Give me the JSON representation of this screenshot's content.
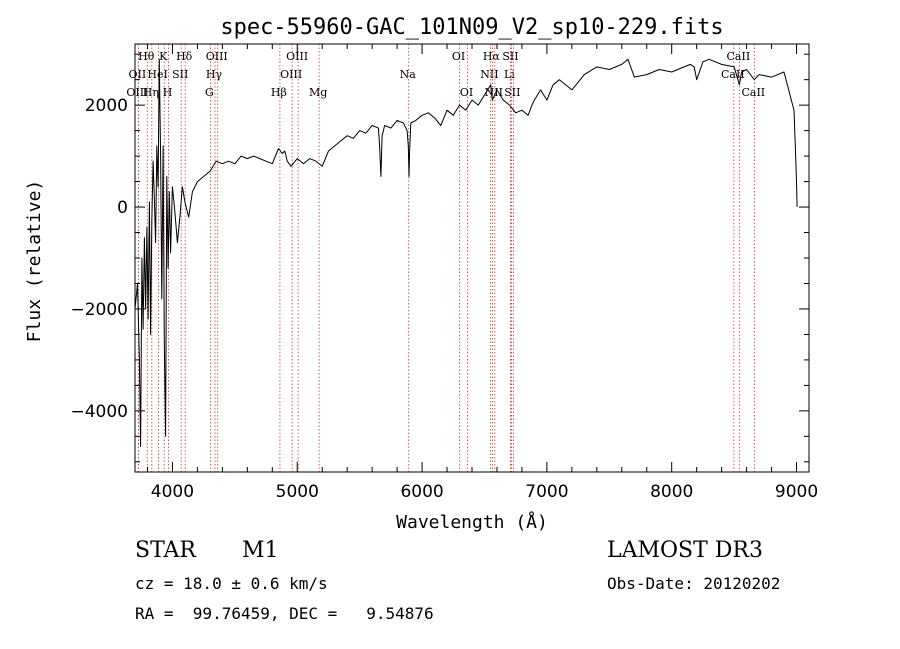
{
  "chart_data": {
    "type": "line",
    "title": "spec-55960-GAC_101N09_V2_sp10-229.fits",
    "xlabel": "Wavelength (Å)",
    "ylabel": "Flux (relative)",
    "xlim": [
      3700,
      9100
    ],
    "ylim": [
      -5200,
      3200
    ],
    "xticks": [
      4000,
      5000,
      6000,
      7000,
      8000,
      9000
    ],
    "yticks": [
      -4000,
      -2000,
      0,
      2000
    ],
    "grid": false,
    "series": [
      {
        "x": [
          3700,
          3720,
          3735,
          3745,
          3755,
          3765,
          3775,
          3785,
          3795,
          3805,
          3815,
          3825,
          3835,
          3845,
          3855,
          3865,
          3875,
          3885,
          3895,
          3905,
          3915,
          3925,
          3935,
          3945,
          3955,
          3965,
          3975,
          3985,
          4000,
          4020,
          4040,
          4060,
          4080,
          4100,
          4130,
          4160,
          4200,
          4250,
          4300,
          4350,
          4400,
          4450,
          4500,
          4550,
          4600,
          4650,
          4700,
          4750,
          4800,
          4850,
          4880,
          4900,
          4920,
          4950,
          5000,
          5050,
          5100,
          5150,
          5200,
          5250,
          5300,
          5350,
          5400,
          5450,
          5500,
          5550,
          5600,
          5650,
          5660,
          5670,
          5680,
          5690,
          5700,
          5750,
          5800,
          5850,
          5880,
          5890,
          5895,
          5900,
          5910,
          5950,
          6000,
          6050,
          6100,
          6150,
          6200,
          6250,
          6300,
          6350,
          6400,
          6450,
          6500,
          6550,
          6563,
          6600,
          6650,
          6700,
          6750,
          6800,
          6850,
          6880,
          6900,
          6950,
          7000,
          7050,
          7100,
          7200,
          7300,
          7400,
          7500,
          7600,
          7650,
          7700,
          7800,
          7900,
          8000,
          8100,
          8150,
          8180,
          8200,
          8250,
          8300,
          8400,
          8500,
          8542,
          8560,
          8600,
          8662,
          8700,
          8800,
          8900,
          8980,
          8990,
          9000,
          9005
        ],
        "y": [
          -2000,
          -1500,
          -3000,
          -4700,
          -1000,
          -2400,
          -600,
          -2000,
          -400,
          -2200,
          100,
          -2500,
          -300,
          900,
          200,
          -700,
          1200,
          400,
          2900,
          1000,
          -1800,
          1200,
          -2600,
          -4500,
          600,
          -1200,
          300,
          -900,
          400,
          -100,
          -700,
          -200,
          400,
          100,
          -200,
          300,
          500,
          600,
          700,
          900,
          850,
          900,
          850,
          1000,
          950,
          1000,
          950,
          900,
          850,
          1150,
          1050,
          1100,
          900,
          800,
          950,
          850,
          950,
          900,
          800,
          1100,
          1200,
          1300,
          1400,
          1350,
          1500,
          1450,
          1600,
          1550,
          1200,
          600,
          1400,
          1500,
          1600,
          1550,
          1700,
          1650,
          1500,
          1200,
          600,
          1100,
          1650,
          1700,
          1800,
          1850,
          1750,
          1600,
          1900,
          1800,
          2000,
          1900,
          2100,
          2000,
          2200,
          2400,
          2100,
          2300,
          2100,
          2000,
          1850,
          1900,
          1800,
          2000,
          2100,
          2300,
          2100,
          2400,
          2500,
          2300,
          2600,
          2750,
          2700,
          2800,
          2900,
          2550,
          2600,
          2700,
          2650,
          2750,
          2800,
          2750,
          2500,
          2850,
          2900,
          2800,
          2750,
          2400,
          2650,
          2700,
          2500,
          2600,
          2550,
          2650,
          1900,
          1200,
          500,
          0
        ]
      }
    ],
    "line_markers": [
      {
        "label": "Hθ",
        "x": 3798,
        "row": 1
      },
      {
        "label": "OII",
        "x": 3727,
        "row": 2
      },
      {
        "label": "OIII",
        "x": 3727,
        "row": 3
      },
      {
        "label": "Hη",
        "x": 3835,
        "row": 3
      },
      {
        "label": "HeI",
        "x": 3889,
        "row": 2
      },
      {
        "label": "K",
        "x": 3934,
        "row": 1
      },
      {
        "label": "H",
        "x": 3969,
        "row": 3
      },
      {
        "label": "SII",
        "x": 4070,
        "row": 2
      },
      {
        "label": "Hδ",
        "x": 4102,
        "row": 1
      },
      {
        "label": "G",
        "x": 4304,
        "row": 3
      },
      {
        "label": "Hγ",
        "x": 4341,
        "row": 2
      },
      {
        "label": "OIII",
        "x": 4363,
        "row": 1
      },
      {
        "label": "Hβ",
        "x": 4861,
        "row": 3
      },
      {
        "label": "OIII",
        "x": 4959,
        "row": 2
      },
      {
        "label": "OIII",
        "x": 5007,
        "row": 1
      },
      {
        "label": "Mg",
        "x": 5175,
        "row": 3
      },
      {
        "label": "Na",
        "x": 5893,
        "row": 2
      },
      {
        "label": "OI",
        "x": 6300,
        "row": 1
      },
      {
        "label": "OI",
        "x": 6364,
        "row": 3
      },
      {
        "label": "NII",
        "x": 6548,
        "row": 2
      },
      {
        "label": "Hα",
        "x": 6563,
        "row": 1
      },
      {
        "label": "NII",
        "x": 6583,
        "row": 3
      },
      {
        "label": "Li",
        "x": 6708,
        "row": 2
      },
      {
        "label": "SII",
        "x": 6716,
        "row": 1
      },
      {
        "label": "SII",
        "x": 6731,
        "row": 3
      },
      {
        "label": "CaII",
        "x": 8498,
        "row": 2
      },
      {
        "label": "CaII",
        "x": 8542,
        "row": 1
      },
      {
        "label": "CaII",
        "x": 8662,
        "row": 3
      }
    ]
  },
  "info": {
    "object_class": "STAR",
    "subclass": "M1",
    "survey": "LAMOST DR3",
    "redshift": "cz = 18.0 ± 0.6 km/s",
    "obs_date": "Obs-Date: 20120202",
    "coords": "RA =  99.76459, DEC =   9.54876"
  }
}
